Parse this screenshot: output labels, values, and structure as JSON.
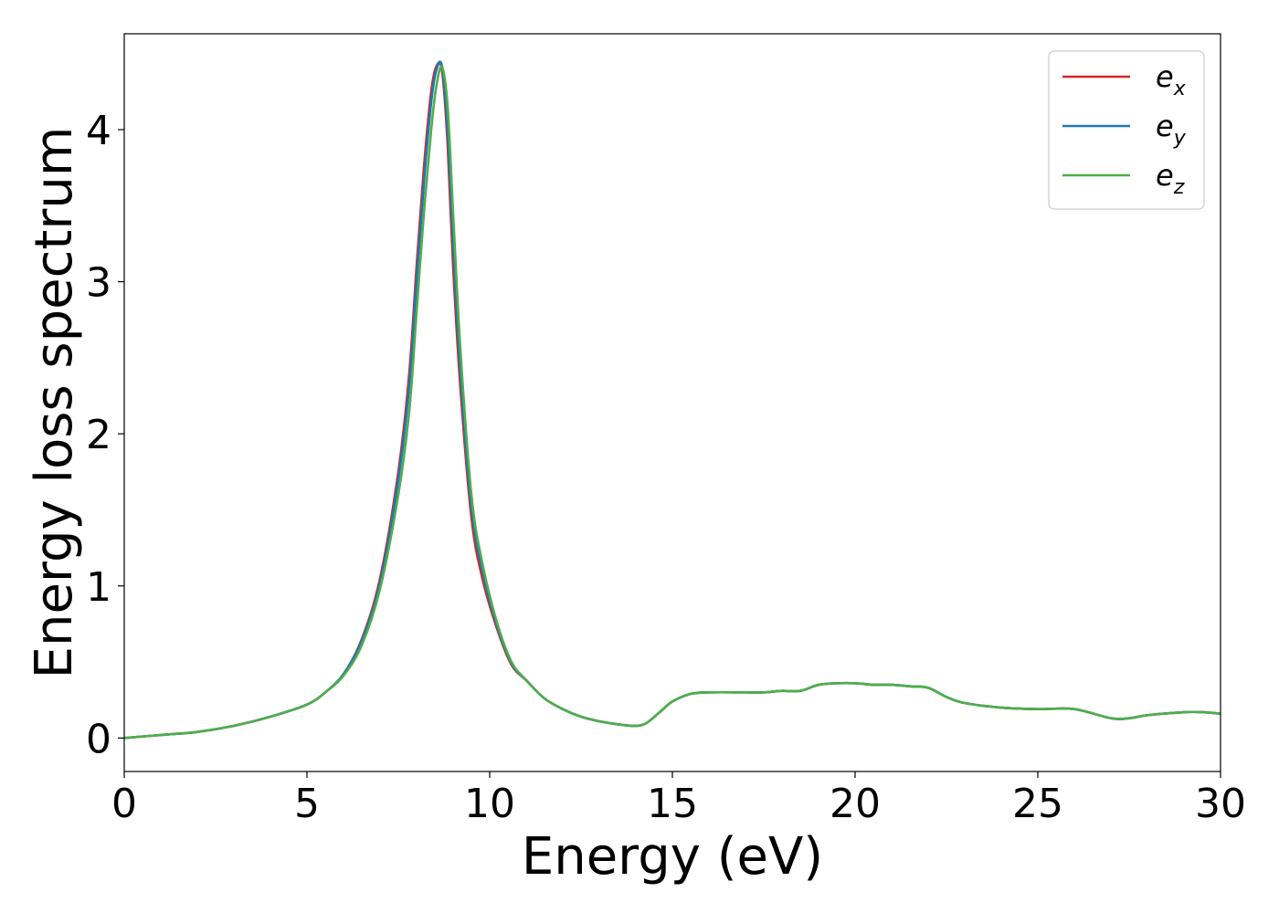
{
  "chart_data": {
    "type": "line",
    "title": "",
    "xlabel": "Energy (eV)",
    "ylabel": "Energy loss spectrum",
    "xlim": [
      0,
      30
    ],
    "ylim": [
      -0.22,
      4.63
    ],
    "xticks": [
      0,
      5,
      10,
      15,
      20,
      25,
      30
    ],
    "yticks": [
      0,
      1,
      2,
      3,
      4
    ],
    "grid": false,
    "legend_position": "top-right",
    "series": [
      {
        "name": "e",
        "subscript": "x",
        "color": "#d62728",
        "x": [
          0,
          1,
          2,
          3,
          4,
          5,
          5.5,
          6,
          6.5,
          7,
          7.5,
          7.8,
          8.0,
          8.2,
          8.4,
          8.55,
          8.7,
          8.85,
          9.0,
          9.2,
          9.5,
          9.8,
          10.2,
          10.6,
          11,
          11.5,
          12,
          12.5,
          13,
          13.5,
          14.0,
          14.3,
          14.7,
          15,
          15.5,
          16,
          17,
          17.5,
          18,
          18.5,
          19,
          19.5,
          20,
          20.5,
          21,
          21.5,
          22,
          22.5,
          23,
          24,
          25,
          26,
          27,
          27.5,
          28,
          29,
          29.5,
          30
        ],
        "y": [
          0.0,
          0.02,
          0.04,
          0.08,
          0.14,
          0.22,
          0.3,
          0.42,
          0.65,
          1.05,
          1.75,
          2.4,
          3.1,
          3.75,
          4.25,
          4.42,
          4.38,
          3.9,
          3.1,
          2.3,
          1.45,
          1.05,
          0.72,
          0.48,
          0.38,
          0.26,
          0.19,
          0.14,
          0.11,
          0.09,
          0.08,
          0.1,
          0.18,
          0.24,
          0.29,
          0.3,
          0.3,
          0.3,
          0.31,
          0.31,
          0.35,
          0.36,
          0.36,
          0.35,
          0.35,
          0.34,
          0.33,
          0.27,
          0.23,
          0.2,
          0.19,
          0.19,
          0.13,
          0.13,
          0.15,
          0.17,
          0.17,
          0.16
        ]
      },
      {
        "name": "e",
        "subscript": "y",
        "color": "#1f77b4",
        "x": [
          0,
          1,
          2,
          3,
          4,
          5,
          5.5,
          6,
          6.5,
          7,
          7.5,
          7.8,
          8.0,
          8.2,
          8.4,
          8.55,
          8.7,
          8.85,
          9.0,
          9.2,
          9.5,
          9.8,
          10.2,
          10.6,
          11,
          11.5,
          12,
          12.5,
          13,
          13.5,
          14.0,
          14.3,
          14.7,
          15,
          15.5,
          16,
          17,
          17.5,
          18,
          18.5,
          19,
          19.5,
          20,
          20.5,
          21,
          21.5,
          22,
          22.5,
          23,
          24,
          25,
          26,
          27,
          27.5,
          28,
          29,
          29.5,
          30
        ],
        "y": [
          0.0,
          0.02,
          0.04,
          0.08,
          0.14,
          0.22,
          0.3,
          0.42,
          0.64,
          1.02,
          1.7,
          2.32,
          3.0,
          3.65,
          4.18,
          4.4,
          4.41,
          4.0,
          3.25,
          2.4,
          1.52,
          1.1,
          0.74,
          0.49,
          0.38,
          0.26,
          0.19,
          0.14,
          0.11,
          0.09,
          0.08,
          0.1,
          0.18,
          0.24,
          0.29,
          0.3,
          0.3,
          0.3,
          0.31,
          0.31,
          0.35,
          0.36,
          0.36,
          0.35,
          0.35,
          0.34,
          0.33,
          0.27,
          0.23,
          0.2,
          0.19,
          0.19,
          0.13,
          0.13,
          0.15,
          0.17,
          0.17,
          0.16
        ]
      },
      {
        "name": "e",
        "subscript": "z",
        "color": "#4daf4a",
        "x": [
          0,
          1,
          2,
          3,
          4,
          5,
          5.5,
          6,
          6.5,
          7,
          7.5,
          7.8,
          8.0,
          8.2,
          8.4,
          8.55,
          8.7,
          8.85,
          9.0,
          9.2,
          9.5,
          9.8,
          10.2,
          10.6,
          11,
          11.5,
          12,
          12.5,
          13,
          13.5,
          14.0,
          14.3,
          14.7,
          15,
          15.5,
          16,
          17,
          17.5,
          18,
          18.5,
          19,
          19.5,
          20,
          20.5,
          21,
          21.5,
          22,
          22.5,
          23,
          24,
          25,
          26,
          27,
          27.5,
          28,
          29,
          29.5,
          30
        ],
        "y": [
          0.0,
          0.02,
          0.04,
          0.08,
          0.14,
          0.22,
          0.3,
          0.41,
          0.61,
          0.98,
          1.6,
          2.15,
          2.8,
          3.45,
          4.0,
          4.3,
          4.41,
          4.15,
          3.45,
          2.55,
          1.6,
          1.15,
          0.76,
          0.5,
          0.38,
          0.26,
          0.19,
          0.14,
          0.11,
          0.09,
          0.08,
          0.1,
          0.18,
          0.24,
          0.29,
          0.3,
          0.3,
          0.3,
          0.31,
          0.31,
          0.35,
          0.36,
          0.36,
          0.35,
          0.35,
          0.34,
          0.33,
          0.27,
          0.23,
          0.2,
          0.19,
          0.19,
          0.13,
          0.13,
          0.15,
          0.17,
          0.17,
          0.16
        ]
      }
    ]
  }
}
